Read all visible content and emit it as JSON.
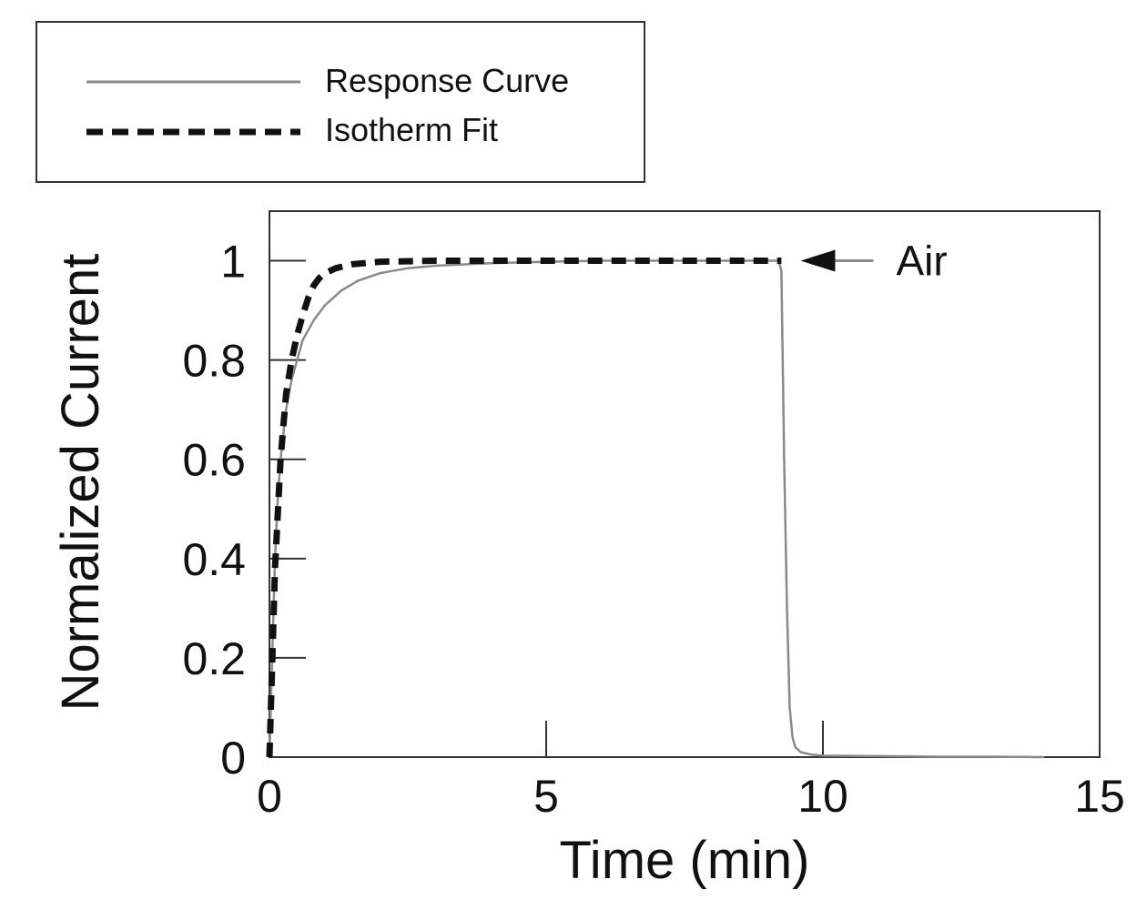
{
  "chart_data": {
    "type": "line",
    "xlabel": "Time (min)",
    "ylabel": "Normalized Current",
    "xlim": [
      0,
      15
    ],
    "ylim": [
      0,
      1.1
    ],
    "xticks": [
      0,
      5,
      10,
      15
    ],
    "yticks": [
      0,
      0.2,
      0.4,
      0.6,
      0.8,
      1
    ],
    "xtick_labels": [
      "0",
      "5",
      "10",
      "15"
    ],
    "ytick_labels": [
      "0",
      "0.2",
      "0.4",
      "0.6",
      "0.8",
      "1"
    ],
    "grid": false,
    "legend_position": "top-left",
    "series": [
      {
        "name": "Response Curve",
        "style": "solid",
        "color": "#8a8a8a",
        "x": [
          0,
          0.05,
          0.1,
          0.15,
          0.2,
          0.3,
          0.4,
          0.5,
          0.6,
          0.8,
          1.0,
          1.3,
          1.6,
          2.0,
          2.5,
          3.0,
          4.0,
          5.0,
          6.0,
          7.0,
          8.0,
          9.0,
          9.2,
          9.25,
          9.3,
          9.35,
          9.4,
          9.45,
          9.5,
          9.6,
          9.8,
          10.0,
          11.0,
          12.0,
          13.0,
          14.0
        ],
        "y": [
          0,
          0.2,
          0.4,
          0.52,
          0.6,
          0.7,
          0.76,
          0.8,
          0.84,
          0.88,
          0.91,
          0.94,
          0.96,
          0.975,
          0.985,
          0.99,
          0.995,
          0.998,
          1.0,
          1.0,
          1.0,
          1.0,
          1.0,
          0.98,
          0.6,
          0.3,
          0.1,
          0.04,
          0.02,
          0.01,
          0.005,
          0.003,
          0.002,
          0.001,
          0.001,
          0.0
        ]
      },
      {
        "name": "Isotherm Fit",
        "style": "dashed",
        "color": "#111111",
        "x": [
          0,
          0.1,
          0.2,
          0.3,
          0.4,
          0.5,
          0.6,
          0.7,
          0.8,
          0.9,
          1.0,
          1.2,
          1.5,
          2.0,
          3.0,
          4.0,
          5.0,
          6.0,
          7.0,
          8.0,
          9.0,
          9.25
        ],
        "y": [
          0,
          0.38,
          0.6,
          0.73,
          0.8,
          0.85,
          0.89,
          0.925,
          0.95,
          0.965,
          0.975,
          0.985,
          0.993,
          0.998,
          1.0,
          1.0,
          1.0,
          1.0,
          1.0,
          1.0,
          1.0,
          1.0
        ]
      }
    ],
    "annotations": [
      {
        "text": "Air",
        "x": 9.3,
        "y": 1.0,
        "arrow": "pointing-left"
      }
    ]
  },
  "legend": {
    "items": [
      {
        "label": "Response Curve",
        "style": "solid",
        "color": "#8a8a8a"
      },
      {
        "label": "Isotherm Fit",
        "style": "dashed",
        "color": "#111111"
      }
    ]
  }
}
